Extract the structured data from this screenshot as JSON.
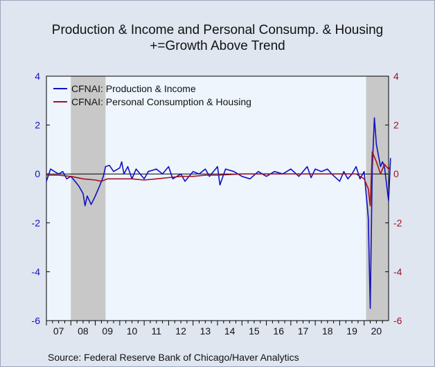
{
  "title": {
    "line1": "Production & Income and Personal Consump. & Housing",
    "line2": "+=Growth Above Trend"
  },
  "source": "Source:  Federal Reserve Bank of Chicago/Haver Analytics",
  "colors": {
    "production_income": "#1010c0",
    "personal_consumption_housing": "#a01020",
    "recession_shade": "#c8c8c8",
    "plot_bg": "#eef5fd",
    "left_axis": "#1010c0",
    "right_axis": "#a01020"
  },
  "chart_data": {
    "type": "line",
    "title": "Production & Income and Personal Consump. & Housing",
    "subtitle": "+=Growth Above Trend",
    "xlabel": "",
    "ylabel": "",
    "ylim": [
      -6,
      4
    ],
    "yticks_left": [
      "4",
      "2",
      "0",
      "-2",
      "-4",
      "-6"
    ],
    "yticks_right": [
      "4",
      "2",
      "0",
      "-2",
      "-4",
      "-6"
    ],
    "ytick_values": [
      4,
      2,
      0,
      -2,
      -4,
      -6
    ],
    "xlim": [
      2007.0,
      2021.0
    ],
    "x_tick_labels": [
      "07",
      "08",
      "09",
      "10",
      "11",
      "12",
      "13",
      "14",
      "15",
      "16",
      "17",
      "18",
      "19",
      "20"
    ],
    "legend_position": "top-left",
    "recessions": [
      [
        2008.0,
        2009.42
      ],
      [
        2020.08,
        2021.0
      ]
    ],
    "series": [
      {
        "name": "CFNAI: Production & Income",
        "color": "#1010c0",
        "points": [
          [
            2007.0,
            -0.3
          ],
          [
            2007.17,
            0.2
          ],
          [
            2007.33,
            0.1
          ],
          [
            2007.5,
            0.0
          ],
          [
            2007.67,
            0.1
          ],
          [
            2007.83,
            -0.2
          ],
          [
            2008.0,
            -0.1
          ],
          [
            2008.17,
            -0.3
          ],
          [
            2008.33,
            -0.5
          ],
          [
            2008.5,
            -0.8
          ],
          [
            2008.58,
            -1.3
          ],
          [
            2008.67,
            -0.9
          ],
          [
            2008.83,
            -1.25
          ],
          [
            2009.0,
            -0.9
          ],
          [
            2009.17,
            -0.5
          ],
          [
            2009.33,
            -0.1
          ],
          [
            2009.42,
            0.3
          ],
          [
            2009.58,
            0.35
          ],
          [
            2009.75,
            0.1
          ],
          [
            2010.0,
            0.25
          ],
          [
            2010.08,
            0.5
          ],
          [
            2010.17,
            0.0
          ],
          [
            2010.33,
            0.3
          ],
          [
            2010.5,
            -0.2
          ],
          [
            2010.67,
            0.2
          ],
          [
            2011.0,
            -0.2
          ],
          [
            2011.17,
            0.1
          ],
          [
            2011.5,
            0.2
          ],
          [
            2011.75,
            0.0
          ],
          [
            2012.0,
            0.3
          ],
          [
            2012.17,
            -0.2
          ],
          [
            2012.5,
            0.0
          ],
          [
            2012.67,
            -0.3
          ],
          [
            2013.0,
            0.1
          ],
          [
            2013.25,
            0.0
          ],
          [
            2013.5,
            0.2
          ],
          [
            2013.67,
            -0.1
          ],
          [
            2014.0,
            0.3
          ],
          [
            2014.1,
            -0.45
          ],
          [
            2014.33,
            0.2
          ],
          [
            2014.67,
            0.1
          ],
          [
            2015.0,
            -0.1
          ],
          [
            2015.33,
            -0.2
          ],
          [
            2015.67,
            0.1
          ],
          [
            2016.0,
            -0.1
          ],
          [
            2016.33,
            0.1
          ],
          [
            2016.67,
            0.0
          ],
          [
            2017.0,
            0.2
          ],
          [
            2017.33,
            -0.1
          ],
          [
            2017.67,
            0.3
          ],
          [
            2017.83,
            -0.15
          ],
          [
            2018.0,
            0.2
          ],
          [
            2018.25,
            0.1
          ],
          [
            2018.5,
            0.2
          ],
          [
            2018.67,
            0.0
          ],
          [
            2019.0,
            -0.3
          ],
          [
            2019.17,
            0.1
          ],
          [
            2019.33,
            -0.2
          ],
          [
            2019.5,
            0.0
          ],
          [
            2019.67,
            0.3
          ],
          [
            2019.83,
            -0.2
          ],
          [
            2020.0,
            0.1
          ],
          [
            2020.17,
            -1.8
          ],
          [
            2020.25,
            -5.5
          ],
          [
            2020.33,
            0.2
          ],
          [
            2020.42,
            2.3
          ],
          [
            2020.5,
            1.2
          ],
          [
            2020.67,
            0.3
          ],
          [
            2020.75,
            0.5
          ],
          [
            2020.83,
            0.3
          ],
          [
            2021.0,
            -1.1
          ],
          [
            2021.08,
            0.65
          ]
        ]
      },
      {
        "name": "CFNAI: Personal Consumption & Housing",
        "color": "#a01020",
        "points": [
          [
            2007.0,
            -0.05
          ],
          [
            2007.5,
            -0.05
          ],
          [
            2008.0,
            -0.1
          ],
          [
            2008.5,
            -0.2
          ],
          [
            2009.0,
            -0.25
          ],
          [
            2009.25,
            -0.3
          ],
          [
            2009.5,
            -0.2
          ],
          [
            2010.0,
            -0.2
          ],
          [
            2010.5,
            -0.2
          ],
          [
            2011.0,
            -0.25
          ],
          [
            2011.5,
            -0.2
          ],
          [
            2012.0,
            -0.15
          ],
          [
            2012.5,
            -0.1
          ],
          [
            2013.0,
            -0.1
          ],
          [
            2013.5,
            -0.05
          ],
          [
            2014.0,
            -0.05
          ],
          [
            2015.0,
            0.0
          ],
          [
            2016.0,
            0.0
          ],
          [
            2017.0,
            0.0
          ],
          [
            2018.0,
            0.0
          ],
          [
            2019.0,
            0.0
          ],
          [
            2019.67,
            0.0
          ],
          [
            2020.0,
            -0.2
          ],
          [
            2020.17,
            -0.6
          ],
          [
            2020.25,
            -1.3
          ],
          [
            2020.33,
            0.9
          ],
          [
            2020.5,
            0.5
          ],
          [
            2020.67,
            0.0
          ],
          [
            2020.83,
            0.4
          ],
          [
            2021.0,
            0.2
          ],
          [
            2021.08,
            0.3
          ]
        ]
      }
    ]
  }
}
